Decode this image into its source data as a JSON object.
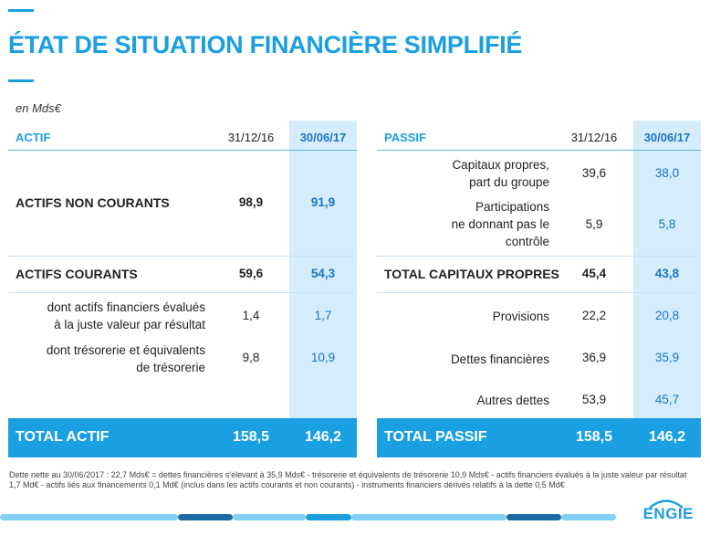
{
  "title": "ÉTAT DE SITUATION FINANCIÈRE SIMPLIFIÉ",
  "unit": "en Mds€",
  "actif": {
    "header": "ACTIF",
    "col1": "31/12/16",
    "col2": "30/06/17",
    "rows": [
      {
        "label": "ACTIFS NON COURANTS",
        "v1": "98,9",
        "v2": "91,9"
      },
      {
        "label": "ACTIFS COURANTS",
        "v1": "59,6",
        "v2": "54,3"
      },
      {
        "label_l1": "dont actifs financiers évalués",
        "label_l2": "à la juste valeur par résultat",
        "v1": "1,4",
        "v2": "1,7"
      },
      {
        "label_l1": "dont trésorerie et équivalents",
        "label_l2": "de trésorerie",
        "v1": "9,8",
        "v2": "10,9"
      }
    ],
    "total": {
      "label": "TOTAL ACTIF",
      "v1": "158,5",
      "v2": "146,2"
    }
  },
  "passif": {
    "header": "PASSIF",
    "col1": "31/12/16",
    "col2": "30/06/17",
    "rows": [
      {
        "label_l1": "Capitaux propres,",
        "label_l2": "part du groupe",
        "v1": "39,6",
        "v2": "38,0"
      },
      {
        "label_l1": "Participations",
        "label_l2": "ne donnant pas le",
        "label_l3": "contrôle",
        "v1": "5,9",
        "v2": "5,8"
      },
      {
        "label": "TOTAL CAPITAUX PROPRES",
        "v1": "45,4",
        "v2": "43,8"
      },
      {
        "label": "Provisions",
        "v1": "22,2",
        "v2": "20,8"
      },
      {
        "label": "Dettes financières",
        "v1": "36,9",
        "v2": "35,9"
      },
      {
        "label": "Autres dettes",
        "v1": "53,9",
        "v2": "45,7"
      }
    ],
    "total": {
      "label": "TOTAL PASSIF",
      "v1": "158,5",
      "v2": "146,2"
    }
  },
  "footnote": {
    "line1": "Dette nette au 30/06/2017 : 22,7 Mds€ = dettes financières s'élevant à 35,9 Mds€ - trésorerie et équivalents de trésorerie 10,9 Mds€ - actifs financiers évalués à la juste valeur par résultat",
    "line2": "1,7 Md€ - actifs liés aux financements 0,1 Md€ (inclus dans les actifs courants et non courants) - instruments financiers dérivés relatifs à la dette 0,5 Md€"
  },
  "logo_text": "ENGIE",
  "colors": {
    "accent": "#1a9fe0",
    "highlight_column": "#d4ecfb",
    "total_bar": "#1aa0e2"
  }
}
